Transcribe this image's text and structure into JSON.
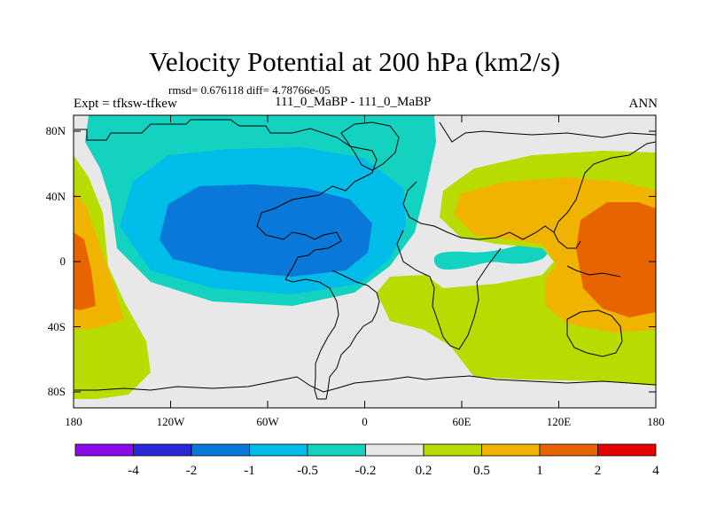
{
  "header": {
    "title": "Velocity Potential at 200 hPa (km2/s)",
    "stats": "rmsd= 0.676118 diff= 4.78766e-05",
    "expt": "Expt = tfksw-tfkew",
    "cases": "111_0_MaBP - 111_0_MaBP",
    "season": "ANN"
  },
  "axes": {
    "lat_ticks": [
      "80N",
      "40N",
      "0",
      "40S",
      "80S"
    ],
    "lon_ticks": [
      "180",
      "120W",
      "60W",
      "0",
      "60E",
      "120E",
      "180"
    ]
  },
  "colorbar": {
    "labels": [
      "-4",
      "-2",
      "-1",
      "-0.5",
      "-0.2",
      "0.2",
      "0.5",
      "1",
      "2",
      "4"
    ],
    "colors": [
      "#8a0ce8",
      "#2828d8",
      "#0a78d8",
      "#00bce8",
      "#14d2c0",
      "#e8e8e8",
      "#b8dc00",
      "#f0b400",
      "#e86400",
      "#e80000"
    ]
  },
  "fills": {
    "background": "#e8e8e8",
    "neg_weak": "#14d2c0",
    "neg_mid": "#00bce8",
    "neg_strong": "#0a78d8",
    "pos_weak": "#b8dc00",
    "pos_mid": "#f0b400",
    "pos_strong": "#e86400"
  }
}
